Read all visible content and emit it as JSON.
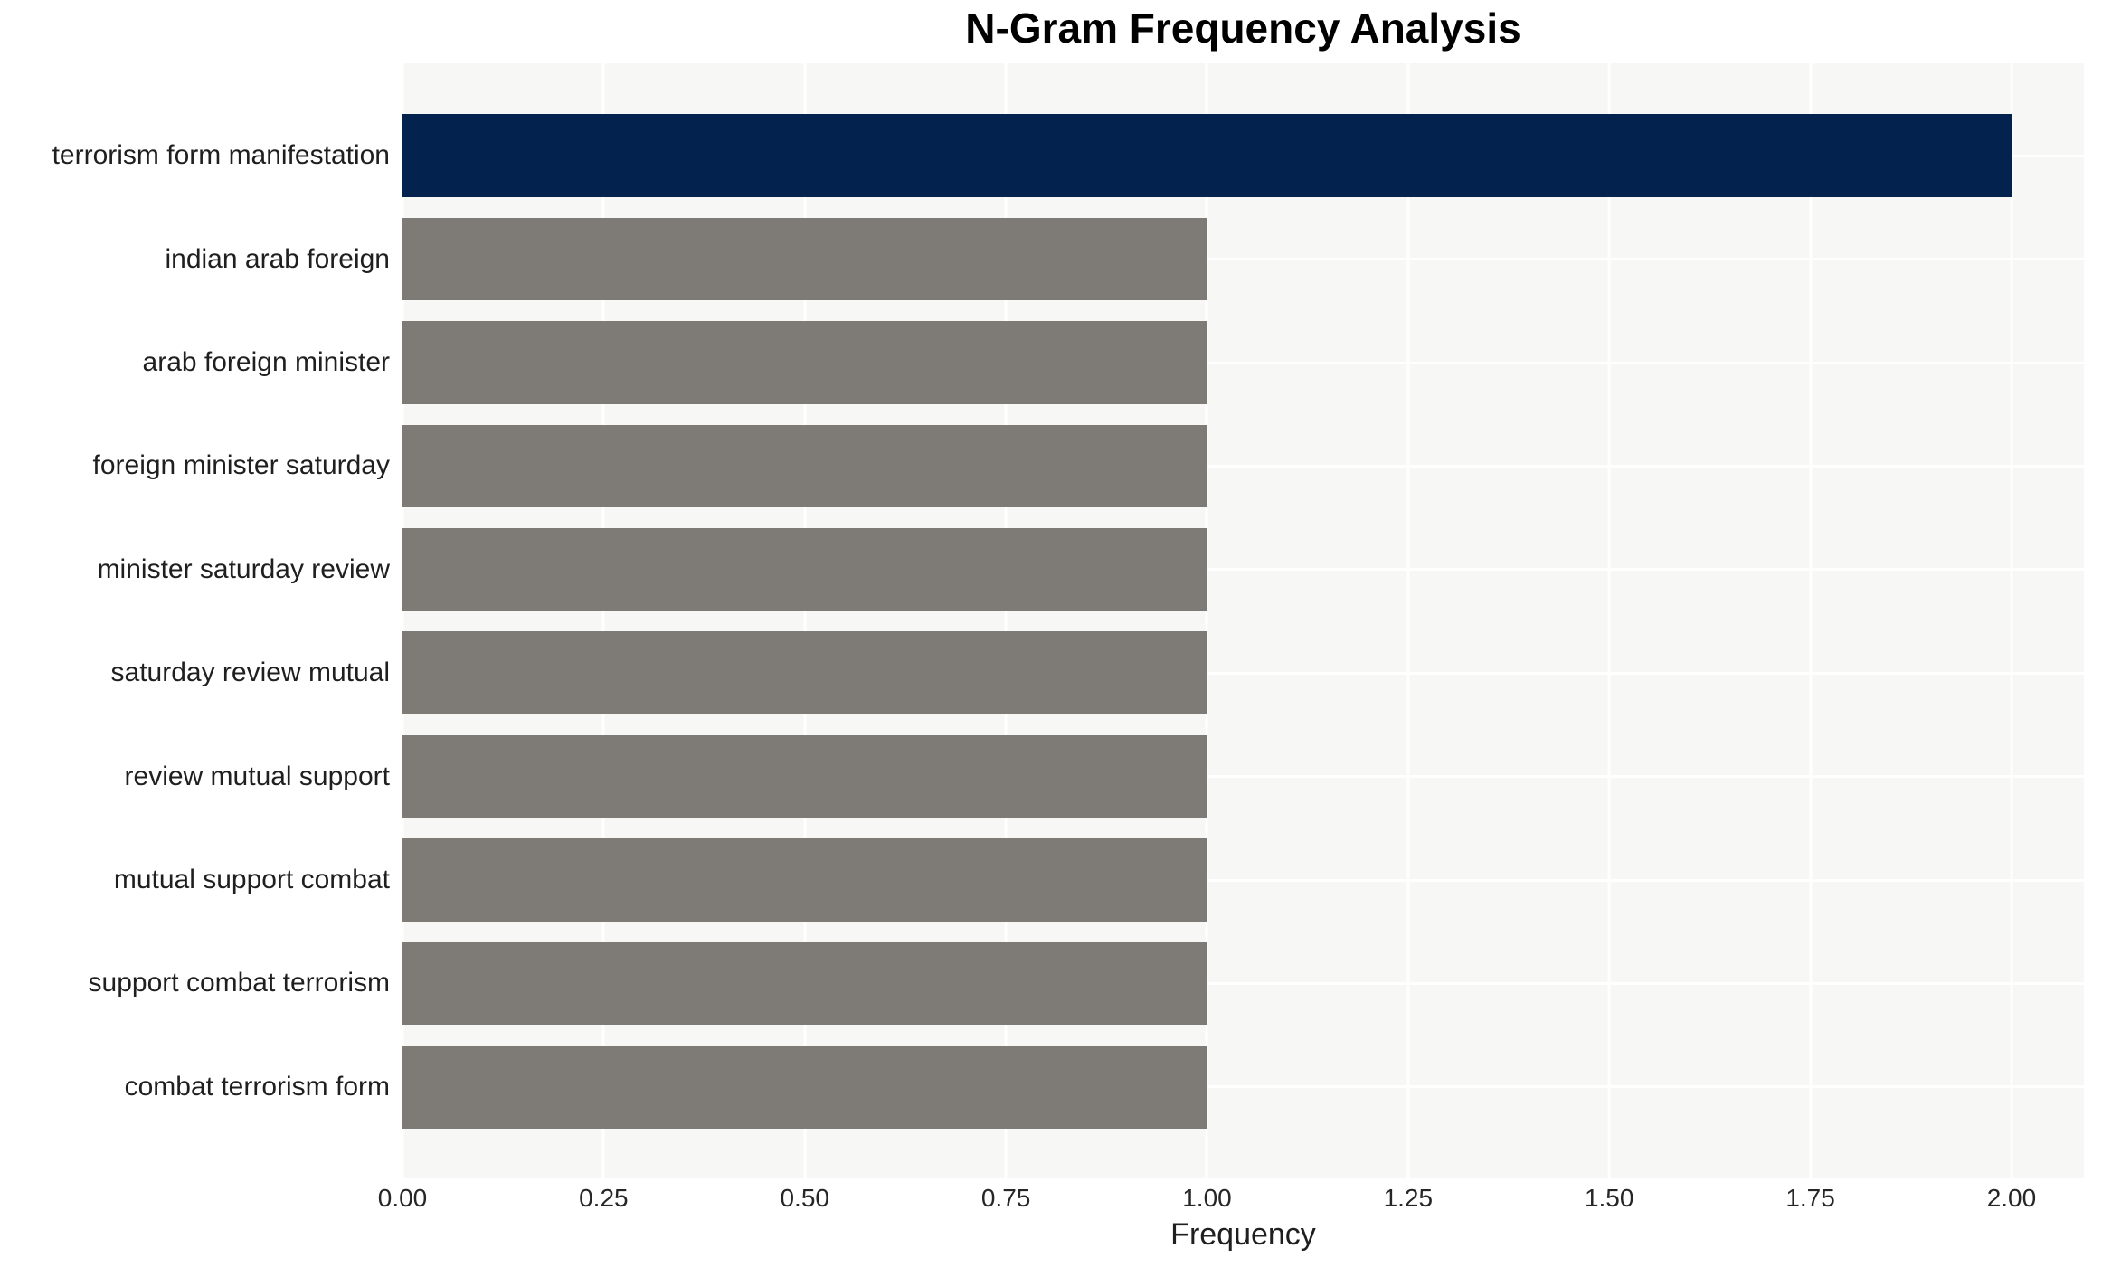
{
  "chart_data": {
    "type": "bar",
    "orientation": "horizontal",
    "title": "N-Gram Frequency Analysis",
    "xlabel": "Frequency",
    "ylabel": "",
    "categories": [
      "terrorism form manifestation",
      "indian arab foreign",
      "arab foreign minister",
      "foreign minister saturday",
      "minister saturday review",
      "saturday review mutual",
      "review mutual support",
      "mutual support combat",
      "support combat terrorism",
      "combat terrorism form"
    ],
    "values": [
      2.0,
      1.0,
      1.0,
      1.0,
      1.0,
      1.0,
      1.0,
      1.0,
      1.0,
      1.0
    ],
    "bar_colors": [
      "#03224E",
      "#7E7B76",
      "#7E7B76",
      "#7E7B76",
      "#7E7B76",
      "#7E7B76",
      "#7E7B76",
      "#7E7B76",
      "#7E7B76",
      "#7E7B76"
    ],
    "xlim": [
      0,
      2.09
    ],
    "x_ticks": [
      {
        "value": 0.0,
        "label": "0.00"
      },
      {
        "value": 0.25,
        "label": "0.25"
      },
      {
        "value": 0.5,
        "label": "0.50"
      },
      {
        "value": 0.75,
        "label": "0.75"
      },
      {
        "value": 1.0,
        "label": "1.00"
      },
      {
        "value": 1.25,
        "label": "1.25"
      },
      {
        "value": 1.5,
        "label": "1.50"
      },
      {
        "value": 1.75,
        "label": "1.75"
      },
      {
        "value": 2.0,
        "label": "2.00"
      }
    ],
    "grid": true,
    "legend": false,
    "colors": {
      "highlight_bar": "#03224E",
      "default_bar": "#7E7B76",
      "plot_background": "#F7F7F5",
      "grid_line": "#FFFFFF",
      "tick_text": "#262626",
      "label_text": "#1F1F1F",
      "title_text": "#000000"
    }
  }
}
